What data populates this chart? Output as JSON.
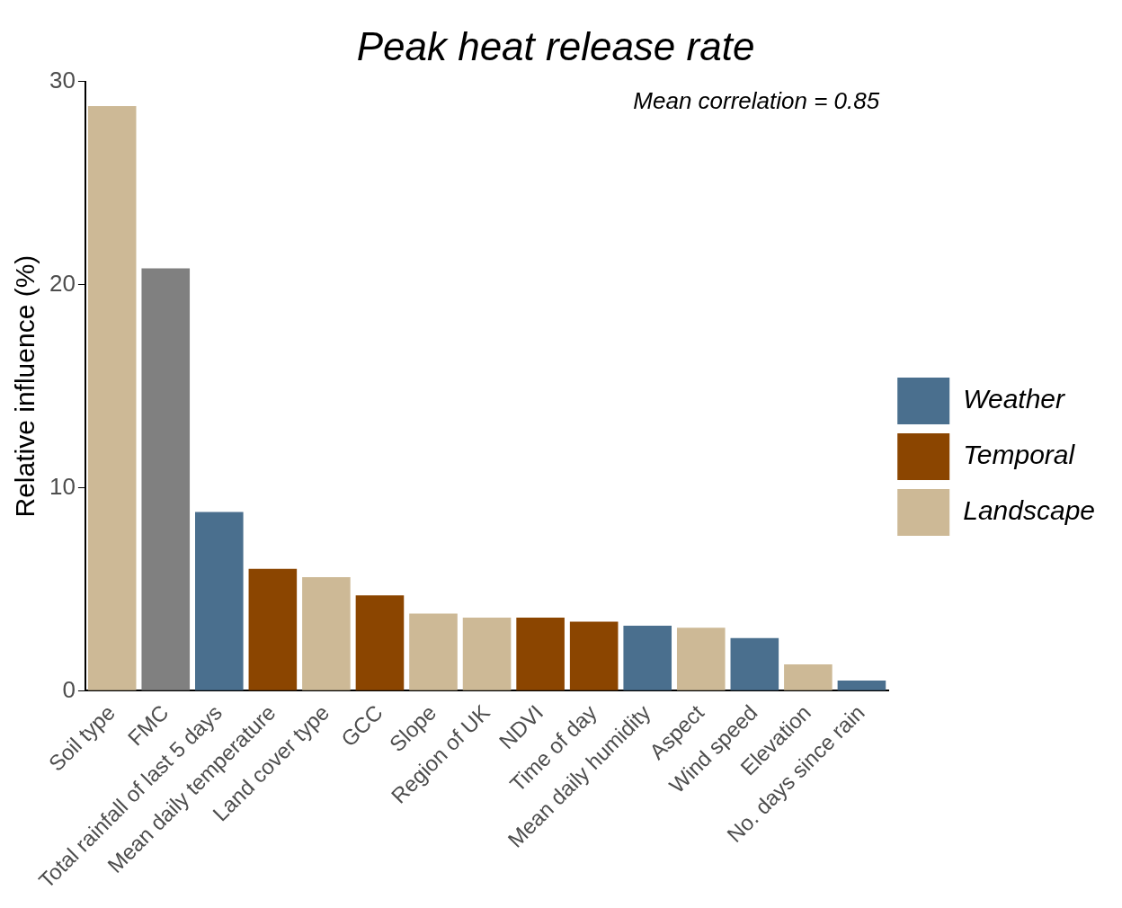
{
  "chart_data": {
    "type": "bar",
    "title": "Peak heat release rate",
    "ylabel": "Relative influence (%)",
    "annotations": [
      "Mean correlation = 0.85"
    ],
    "categories": [
      "Soil type",
      "FMC",
      "Total rainfall of last 5 days",
      "Mean daily temperature",
      "Land cover type",
      "GCC",
      "Slope",
      "Region of UK",
      "NDVI",
      "Time of day",
      "Mean daily humidity",
      "Aspect",
      "Wind speed",
      "Elevation",
      "No. days since rain"
    ],
    "series": [
      {
        "name": "Weather",
        "color": "#4a6f8e",
        "values": [
          null,
          null,
          8.8,
          null,
          null,
          null,
          null,
          null,
          null,
          null,
          3.2,
          null,
          2.6,
          null,
          0.5
        ]
      },
      {
        "name": "Temporal",
        "color": "#8b4500",
        "values": [
          null,
          null,
          null,
          6.0,
          null,
          4.7,
          null,
          null,
          3.6,
          3.4,
          null,
          null,
          null,
          null,
          null
        ]
      },
      {
        "name": "Landscape",
        "color": "#cdb996",
        "values": [
          28.8,
          null,
          null,
          null,
          5.6,
          null,
          3.8,
          3.6,
          null,
          null,
          null,
          3.1,
          null,
          1.3,
          null
        ]
      },
      {
        "color": "#808080",
        "values": [
          null,
          20.8,
          null,
          null,
          null,
          null,
          null,
          null,
          null,
          null,
          null,
          null,
          null,
          null,
          null
        ]
      }
    ],
    "ylim": [
      0,
      30
    ],
    "yticks": [
      0,
      10,
      20,
      30
    ],
    "grid": false,
    "legend": "right"
  }
}
